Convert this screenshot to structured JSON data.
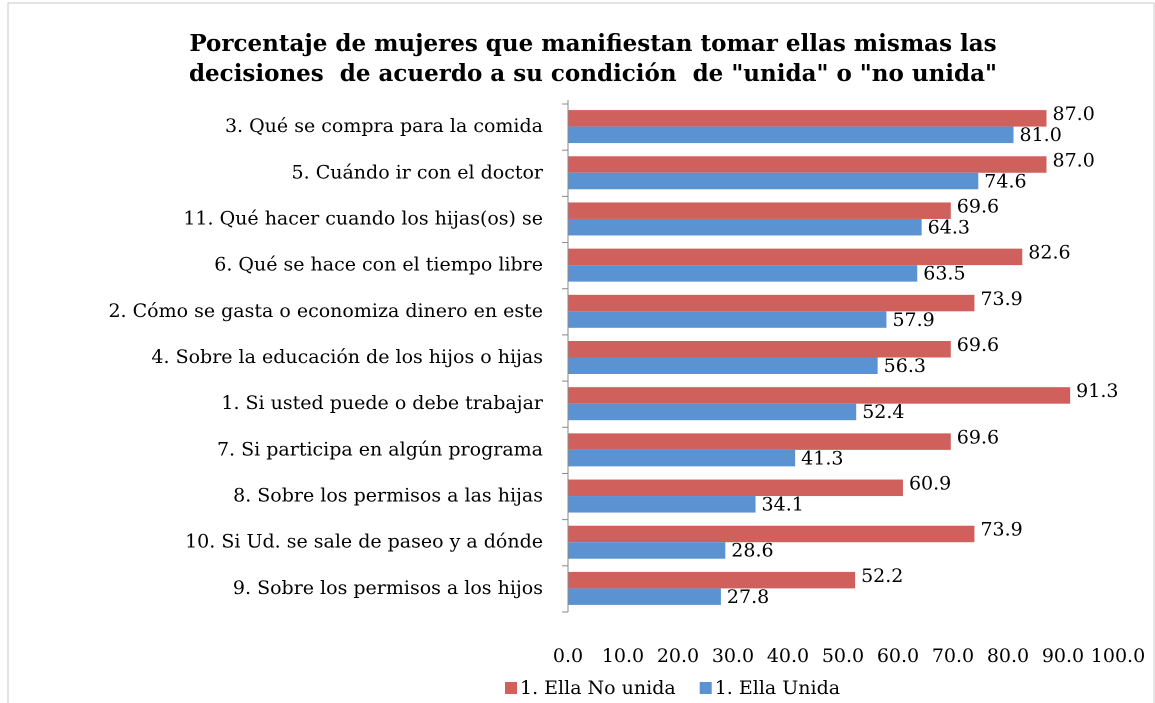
{
  "chart_data": {
    "type": "hbar",
    "title": [
      "Porcentaje de mujeres que manifiestan tomar ellas mismas las",
      "decisiones  de acuerdo a su condición  de \"unida\" o \"no unida\""
    ],
    "categories": [
      "3. Qué se compra para la comida",
      "5. Cuándo ir con el doctor",
      "11. Qué hacer cuando los hijas(os) se",
      "6. Qué se hace con el tiempo libre",
      "2. Cómo se gasta o economiza dinero en este",
      "4. Sobre la educación de los hijos o hijas",
      "1. Si usted puede o debe trabajar",
      "7. Si participa en algún programa",
      "8. Sobre los permisos a las hijas",
      "10. Si Ud. se sale de paseo y a dónde",
      "9. Sobre los permisos a los hijos"
    ],
    "series": [
      {
        "name": "1. Ella No unida",
        "color": "#cf605b",
        "values": [
          87.0,
          87.0,
          69.6,
          82.6,
          73.9,
          69.6,
          91.3,
          69.6,
          60.9,
          73.9,
          52.2
        ],
        "value_labels": [
          "87.0",
          "87.0",
          "69.6",
          "82.6",
          "73.9",
          "69.6",
          "91.3",
          "69.6",
          "60.9",
          "73.9",
          "52.2"
        ]
      },
      {
        "name": "1. Ella Unida",
        "color": "#5b93d2",
        "values": [
          81.0,
          74.6,
          64.3,
          63.5,
          57.9,
          56.3,
          52.4,
          41.3,
          34.1,
          28.6,
          27.8
        ],
        "value_labels": [
          "81.0",
          "74.6",
          "64.3",
          "63.5",
          "57.9",
          "56.3",
          "52.4",
          "41.3",
          "34.1",
          "28.6",
          "27.8"
        ]
      }
    ],
    "xlim": [
      0,
      100
    ],
    "xticks": [
      {
        "value": 0,
        "label": "0.0"
      },
      {
        "value": 10,
        "label": "10.0"
      },
      {
        "value": 20,
        "label": "20.0"
      },
      {
        "value": 30,
        "label": "30.0"
      },
      {
        "value": 40,
        "label": "40.0"
      },
      {
        "value": 50,
        "label": "50.0"
      },
      {
        "value": 60,
        "label": "60.0"
      },
      {
        "value": 70,
        "label": "70.0"
      },
      {
        "value": 80,
        "label": "80.0"
      },
      {
        "value": 90,
        "label": "90.0"
      },
      {
        "value": 100,
        "label": "100.0"
      }
    ],
    "legend": "bottom"
  }
}
